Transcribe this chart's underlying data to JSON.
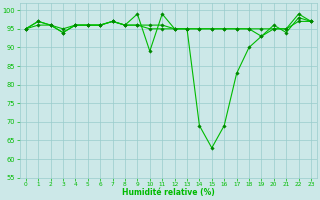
{
  "xlabel": "Humidité relative (%)",
  "ylabel": "",
  "xlim": [
    -0.5,
    23.5
  ],
  "ylim": [
    55,
    102
  ],
  "yticks": [
    55,
    60,
    65,
    70,
    75,
    80,
    85,
    90,
    95,
    100
  ],
  "xticks": [
    0,
    1,
    2,
    3,
    4,
    5,
    6,
    7,
    8,
    9,
    10,
    11,
    12,
    13,
    14,
    15,
    16,
    17,
    18,
    19,
    20,
    21,
    22,
    23
  ],
  "bg_color": "#cce8e8",
  "grid_color": "#99cccc",
  "line_color": "#00bb00",
  "marker_color": "#008800",
  "series": [
    [
      95,
      97,
      96,
      94,
      96,
      96,
      96,
      97,
      96,
      99,
      89,
      99,
      95,
      95,
      69,
      63,
      69,
      83,
      90,
      93,
      96,
      94,
      98,
      97
    ],
    [
      95,
      97,
      96,
      95,
      96,
      96,
      96,
      97,
      96,
      96,
      95,
      95,
      95,
      95,
      95,
      95,
      95,
      95,
      95,
      95,
      95,
      95,
      97,
      97
    ],
    [
      95,
      96,
      96,
      94,
      96,
      96,
      96,
      97,
      96,
      96,
      96,
      96,
      95,
      95,
      95,
      95,
      95,
      95,
      95,
      93,
      95,
      95,
      99,
      97
    ]
  ]
}
